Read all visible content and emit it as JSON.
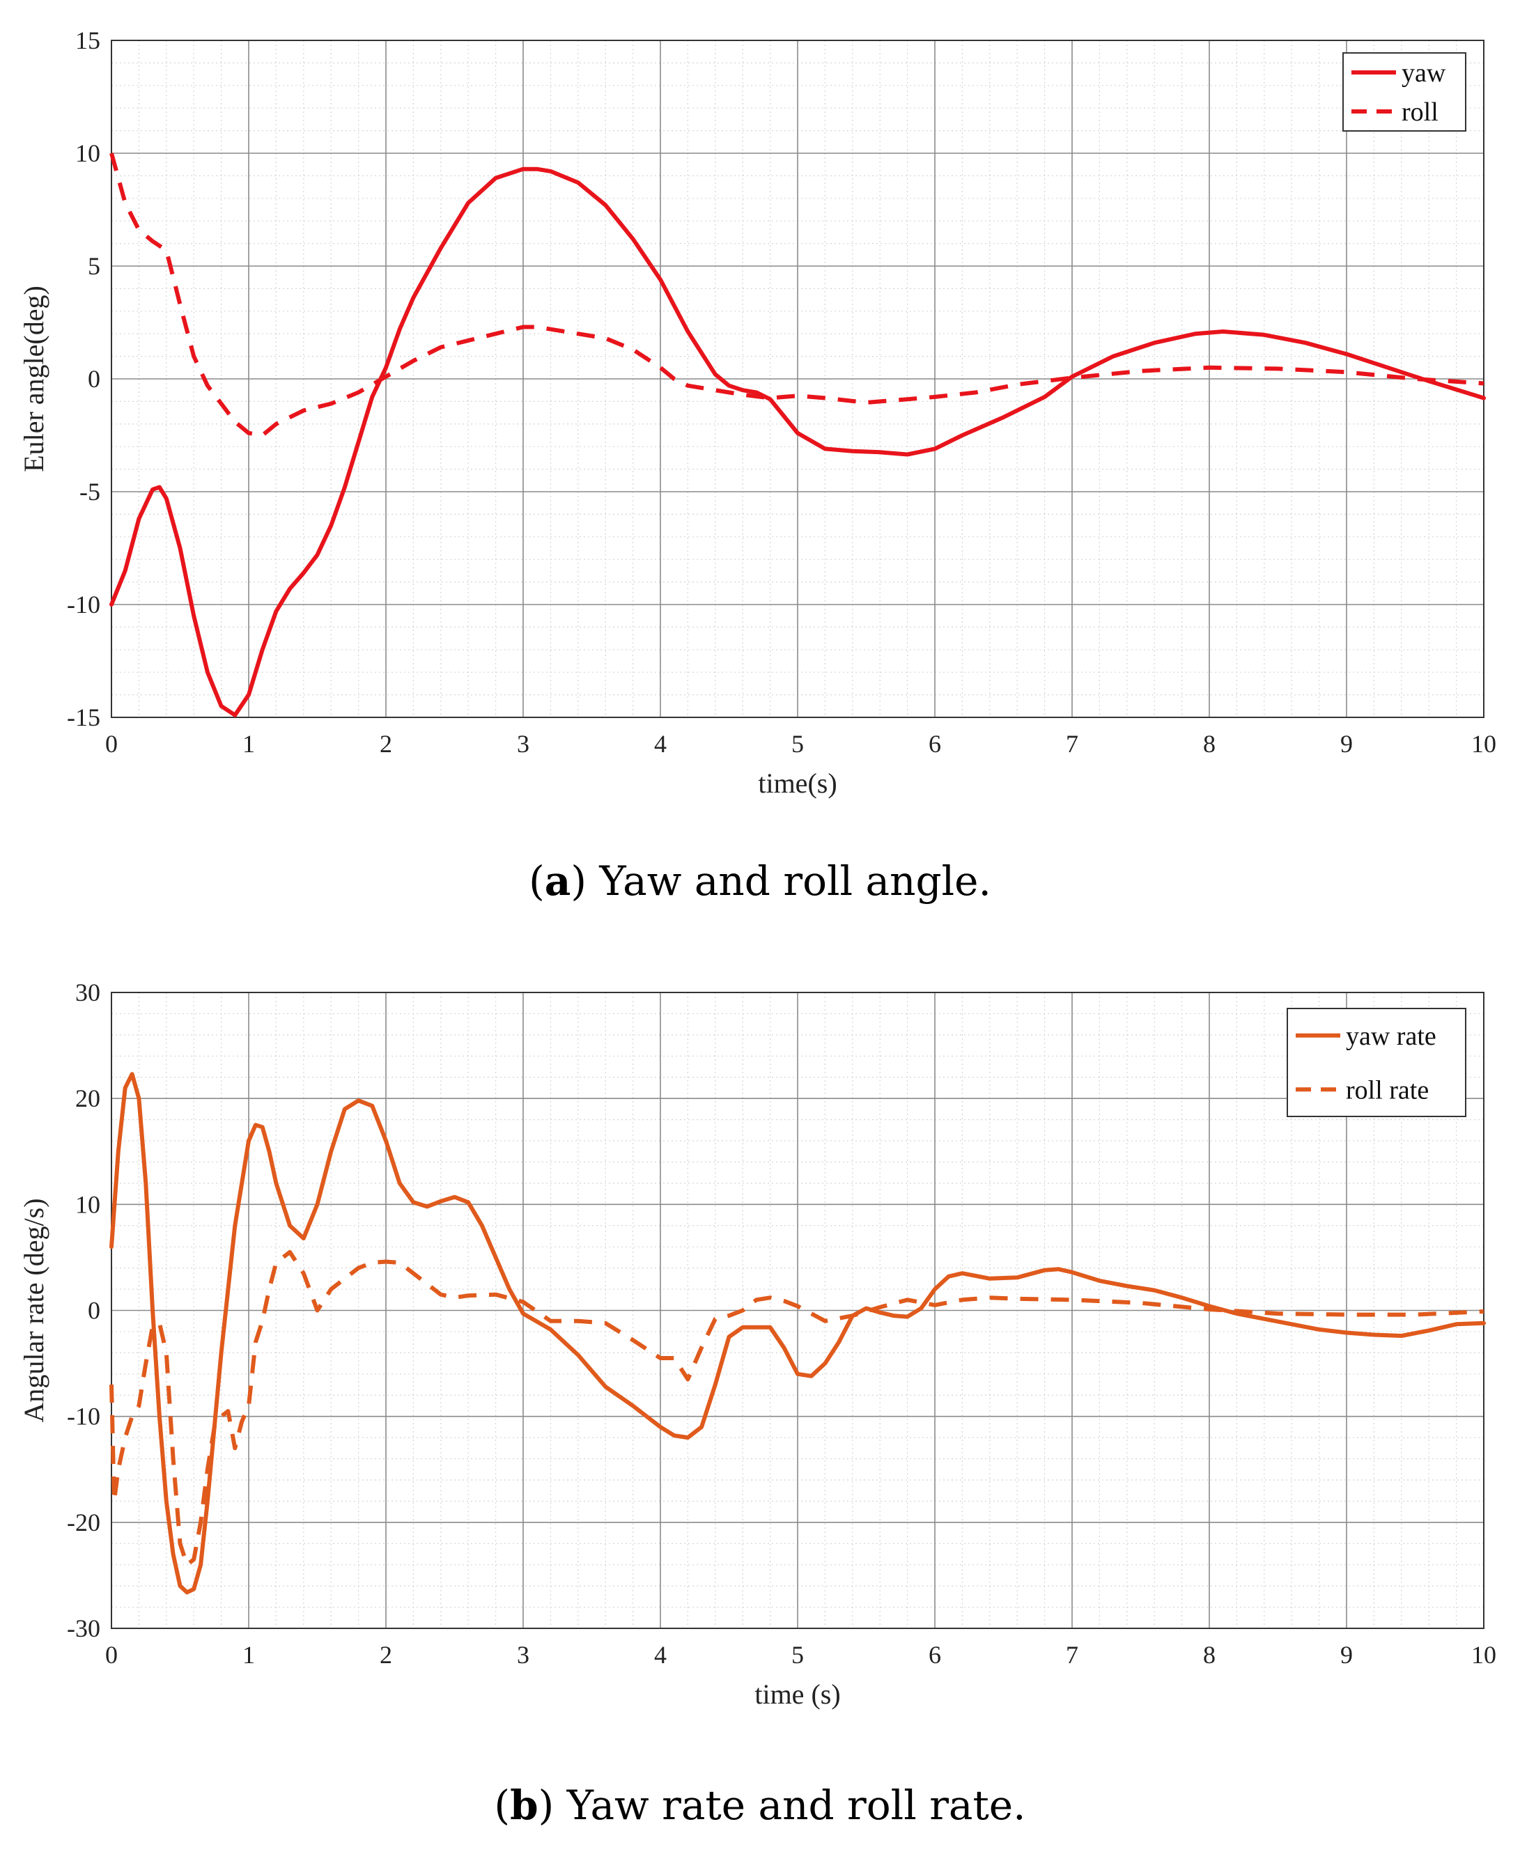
{
  "chart_data": [
    {
      "type": "line",
      "caption": {
        "open": "(",
        "letter": "a",
        "text": ") Yaw and roll angle."
      },
      "xlabel": "time(s)",
      "ylabel": "Euler angle(deg)",
      "xlim": [
        0,
        10
      ],
      "ylim": [
        -15,
        15
      ],
      "xticks": [
        "0",
        "1",
        "2",
        "3",
        "4",
        "5",
        "6",
        "7",
        "8",
        "9",
        "10"
      ],
      "yticks": [
        "15",
        "10",
        "5",
        "0",
        "-5",
        "-10",
        "-15"
      ],
      "grid": true,
      "legend_position": "top-right",
      "color": "#e8141b",
      "series": [
        {
          "name": "yaw",
          "style": "solid",
          "x": [
            0,
            0.1,
            0.2,
            0.3,
            0.35,
            0.4,
            0.5,
            0.6,
            0.7,
            0.8,
            0.9,
            1.0,
            1.1,
            1.2,
            1.3,
            1.4,
            1.5,
            1.6,
            1.7,
            1.8,
            1.9,
            2.0,
            2.1,
            2.2,
            2.4,
            2.6,
            2.8,
            3.0,
            3.1,
            3.2,
            3.4,
            3.6,
            3.8,
            4.0,
            4.2,
            4.4,
            4.5,
            4.6,
            4.7,
            4.8,
            5.0,
            5.2,
            5.4,
            5.6,
            5.8,
            6.0,
            6.2,
            6.5,
            6.8,
            7.0,
            7.3,
            7.6,
            7.9,
            8.1,
            8.4,
            8.7,
            9.0,
            9.3,
            9.6,
            10.0
          ],
          "y": [
            -10,
            -8.5,
            -6.2,
            -4.9,
            -4.8,
            -5.3,
            -7.5,
            -10.5,
            -13.0,
            -14.5,
            -14.9,
            -14.0,
            -12.0,
            -10.3,
            -9.3,
            -8.6,
            -7.8,
            -6.5,
            -4.8,
            -2.8,
            -0.8,
            0.5,
            2.2,
            3.6,
            5.8,
            7.8,
            8.9,
            9.3,
            9.3,
            9.2,
            8.7,
            7.7,
            6.2,
            4.4,
            2.1,
            0.2,
            -0.3,
            -0.5,
            -0.6,
            -0.9,
            -2.4,
            -3.1,
            -3.2,
            -3.25,
            -3.35,
            -3.1,
            -2.5,
            -1.7,
            -0.8,
            0.1,
            1.0,
            1.6,
            2.0,
            2.1,
            1.95,
            1.6,
            1.1,
            0.5,
            -0.1,
            -0.85
          ]
        },
        {
          "name": "roll",
          "style": "dashed",
          "x": [
            0,
            0.1,
            0.2,
            0.3,
            0.4,
            0.5,
            0.6,
            0.7,
            0.8,
            0.9,
            1.0,
            1.1,
            1.2,
            1.4,
            1.6,
            1.8,
            2.0,
            2.2,
            2.4,
            2.6,
            2.8,
            3.0,
            3.1,
            3.2,
            3.4,
            3.6,
            3.8,
            4.0,
            4.1,
            4.2,
            4.4,
            4.6,
            4.8,
            5.0,
            5.2,
            5.5,
            5.8,
            6.0,
            6.3,
            6.6,
            7.0,
            7.5,
            8.0,
            8.5,
            9.0,
            9.5,
            10.0
          ],
          "y": [
            10,
            7.8,
            6.6,
            6.1,
            5.7,
            3.3,
            1.0,
            -0.3,
            -1.1,
            -1.9,
            -2.4,
            -2.5,
            -2.0,
            -1.4,
            -1.1,
            -0.6,
            0.1,
            0.8,
            1.4,
            1.7,
            2.0,
            2.3,
            2.3,
            2.2,
            2.0,
            1.8,
            1.3,
            0.5,
            0.0,
            -0.3,
            -0.5,
            -0.7,
            -0.85,
            -0.75,
            -0.85,
            -1.05,
            -0.9,
            -0.8,
            -0.6,
            -0.25,
            0.05,
            0.35,
            0.5,
            0.45,
            0.3,
            0.0,
            -0.2
          ]
        }
      ]
    },
    {
      "type": "line",
      "caption": {
        "open": "(",
        "letter": "b",
        "text": ") Yaw rate and roll rate."
      },
      "xlabel": "time (s)",
      "ylabel": "Angular rate (deg/s)",
      "xlim": [
        0,
        10
      ],
      "ylim": [
        -30,
        30
      ],
      "xticks": [
        "0",
        "1",
        "2",
        "3",
        "4",
        "5",
        "6",
        "7",
        "8",
        "9",
        "10"
      ],
      "yticks": [
        "30",
        "20",
        "10",
        "0",
        "-10",
        "-20",
        "-30"
      ],
      "grid": true,
      "legend_position": "top-right",
      "color": "#e05a1c",
      "series": [
        {
          "name": "yaw rate",
          "style": "solid",
          "x": [
            0,
            0.05,
            0.1,
            0.15,
            0.2,
            0.25,
            0.3,
            0.35,
            0.4,
            0.45,
            0.5,
            0.55,
            0.6,
            0.65,
            0.7,
            0.8,
            0.9,
            1.0,
            1.05,
            1.1,
            1.15,
            1.2,
            1.3,
            1.4,
            1.5,
            1.6,
            1.7,
            1.8,
            1.9,
            2.0,
            2.1,
            2.2,
            2.3,
            2.4,
            2.5,
            2.6,
            2.7,
            2.8,
            2.9,
            3.0,
            3.2,
            3.4,
            3.6,
            3.8,
            4.0,
            4.1,
            4.2,
            4.3,
            4.4,
            4.5,
            4.6,
            4.7,
            4.8,
            4.9,
            5.0,
            5.1,
            5.2,
            5.3,
            5.4,
            5.5,
            5.6,
            5.7,
            5.8,
            5.9,
            6.0,
            6.1,
            6.2,
            6.4,
            6.6,
            6.8,
            6.9,
            7.0,
            7.2,
            7.4,
            7.6,
            7.8,
            8.0,
            8.2,
            8.4,
            8.6,
            8.8,
            9.0,
            9.2,
            9.4,
            9.6,
            9.8,
            10.0
          ],
          "y": [
            6,
            15,
            21,
            22.3,
            20,
            12,
            0,
            -10,
            -18,
            -23,
            -26,
            -26.6,
            -26.3,
            -24,
            -18,
            -4,
            8,
            16,
            17.5,
            17.3,
            15,
            12,
            8,
            6.8,
            10,
            15,
            19,
            19.8,
            19.3,
            16,
            12,
            10.2,
            9.8,
            10.3,
            10.7,
            10.2,
            8,
            5,
            2,
            -0.3,
            -1.8,
            -4.2,
            -7.2,
            -9,
            -11,
            -11.8,
            -12,
            -11,
            -7,
            -2.5,
            -1.6,
            -1.6,
            -1.6,
            -3.5,
            -6,
            -6.2,
            -5,
            -3,
            -0.5,
            0.2,
            -0.2,
            -0.5,
            -0.6,
            0.2,
            2,
            3.2,
            3.5,
            3,
            3.1,
            3.8,
            3.9,
            3.6,
            2.8,
            2.3,
            1.9,
            1.2,
            0.4,
            -0.3,
            -0.8,
            -1.3,
            -1.8,
            -2.1,
            -2.3,
            -2.4,
            -1.9,
            -1.3,
            -1.2
          ]
        },
        {
          "name": "roll rate",
          "style": "dashed",
          "x": [
            0,
            0.02,
            0.05,
            0.1,
            0.15,
            0.2,
            0.25,
            0.3,
            0.35,
            0.4,
            0.45,
            0.5,
            0.55,
            0.6,
            0.65,
            0.7,
            0.75,
            0.8,
            0.85,
            0.9,
            0.95,
            1.0,
            1.05,
            1.1,
            1.15,
            1.2,
            1.3,
            1.4,
            1.5,
            1.6,
            1.7,
            1.8,
            1.9,
            2.0,
            2.1,
            2.2,
            2.3,
            2.4,
            2.5,
            2.6,
            2.8,
            3.0,
            3.2,
            3.4,
            3.6,
            3.8,
            4.0,
            4.1,
            4.2,
            4.3,
            4.4,
            4.5,
            4.6,
            4.7,
            4.8,
            4.9,
            5.0,
            5.2,
            5.4,
            5.6,
            5.8,
            6.0,
            6.2,
            6.4,
            6.6,
            7.0,
            7.5,
            8.0,
            8.5,
            9.0,
            9.5,
            10.0
          ],
          "y": [
            -7,
            -18,
            -15,
            -12,
            -10,
            -9,
            -5,
            -1.5,
            -1.2,
            -4,
            -14,
            -22,
            -24,
            -23.5,
            -20,
            -15,
            -11,
            -10,
            -9.5,
            -13,
            -10.5,
            -9,
            -3,
            -1,
            2,
            4.5,
            5.5,
            3.5,
            0,
            2,
            3,
            4,
            4.5,
            4.6,
            4.5,
            3.5,
            2.5,
            1.5,
            1.2,
            1.4,
            1.5,
            0.8,
            -1,
            -1,
            -1.2,
            -2.8,
            -4.5,
            -4.5,
            -6.5,
            -3.5,
            -0.8,
            -0.5,
            0,
            1.0,
            1.2,
            0.9,
            0.4,
            -1,
            -0.5,
            0.3,
            1.0,
            0.5,
            1.0,
            1.2,
            1.1,
            1.0,
            0.7,
            0.1,
            -0.3,
            -0.4,
            -0.4,
            -0.1
          ]
        }
      ]
    }
  ]
}
